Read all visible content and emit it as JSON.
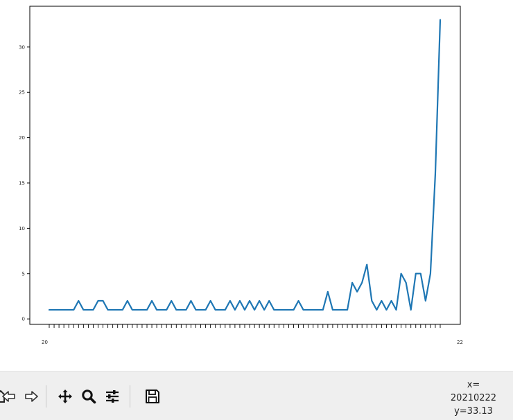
{
  "chart_data": {
    "type": "line",
    "color": "#1f77b4",
    "ylim": [
      -0.6,
      34.5
    ],
    "yticks": [
      0,
      5,
      10,
      15,
      20,
      25,
      30
    ],
    "ytick_labels": [
      "0",
      "5",
      "10",
      "15",
      "20",
      "25",
      "30"
    ],
    "xtick_labels_visible": [
      "20",
      "22"
    ],
    "grid": false,
    "series": [
      {
        "values": [
          1,
          1,
          1,
          1,
          1,
          1,
          2,
          1,
          1,
          1,
          2,
          2,
          1,
          1,
          1,
          1,
          2,
          1,
          1,
          1,
          1,
          2,
          1,
          1,
          1,
          2,
          1,
          1,
          1,
          2,
          1,
          1,
          1,
          2,
          1,
          1,
          1,
          2,
          1,
          2,
          1,
          2,
          1,
          2,
          1,
          2,
          1,
          1,
          1,
          1,
          1,
          2,
          1,
          1,
          1,
          1,
          1,
          3,
          1,
          1,
          1,
          1,
          4,
          3,
          4,
          6,
          2,
          1,
          2,
          1,
          2,
          1,
          5,
          4,
          1,
          5,
          5,
          2,
          5,
          16,
          33
        ]
      }
    ]
  },
  "toolbar": {
    "buttons": [
      {
        "name": "home",
        "icon": "home-icon"
      },
      {
        "name": "back",
        "icon": "arrow-left-icon"
      },
      {
        "name": "forward",
        "icon": "arrow-right-icon"
      },
      {
        "name": "pan",
        "icon": "move-icon"
      },
      {
        "name": "zoom",
        "icon": "magnifier-icon"
      },
      {
        "name": "configure-subplots",
        "icon": "sliders-icon"
      },
      {
        "name": "save",
        "icon": "floppy-disk-icon"
      }
    ],
    "coords": {
      "x_label": "x=",
      "x_value": "20210222",
      "y_text": "y=33.13"
    }
  }
}
